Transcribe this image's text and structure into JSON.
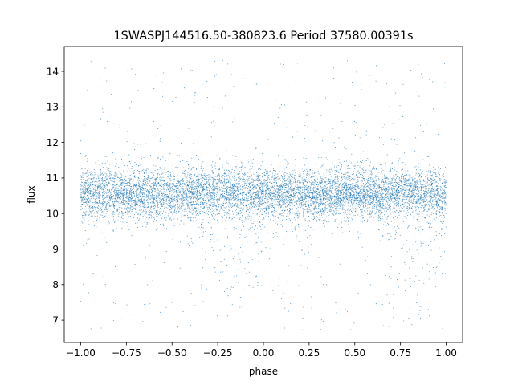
{
  "chart_data": {
    "type": "scatter",
    "title": "1SWASPJ144516.50-380823.6 Period 37580.00391s",
    "xlabel": "phase",
    "ylabel": "flux",
    "xlim": [
      -1.09,
      1.09
    ],
    "ylim": [
      6.37,
      14.7
    ],
    "xticks": [
      -1.0,
      -0.75,
      -0.5,
      -0.25,
      0.0,
      0.25,
      0.5,
      0.75,
      1.0
    ],
    "xtick_labels": [
      "−1.00",
      "−0.75",
      "−0.50",
      "−0.25",
      "0.00",
      "0.25",
      "0.50",
      "0.75",
      "1.00"
    ],
    "yticks": [
      7,
      8,
      9,
      10,
      11,
      12,
      13,
      14
    ],
    "ytick_labels": [
      "7",
      "8",
      "9",
      "10",
      "11",
      "12",
      "13",
      "14"
    ],
    "grid": false,
    "point_color": "#1f77b4",
    "x_range": [
      -1.0,
      1.0
    ],
    "band": {
      "center_flux": 10.6,
      "core_low": 9.9,
      "core_high": 11.3,
      "min_flux": 6.7,
      "max_flux": 14.3
    },
    "dips": [
      {
        "phase": -0.15,
        "min_flux": 8.3
      },
      {
        "phase": 0.85,
        "min_flux": 8.3
      }
    ]
  }
}
